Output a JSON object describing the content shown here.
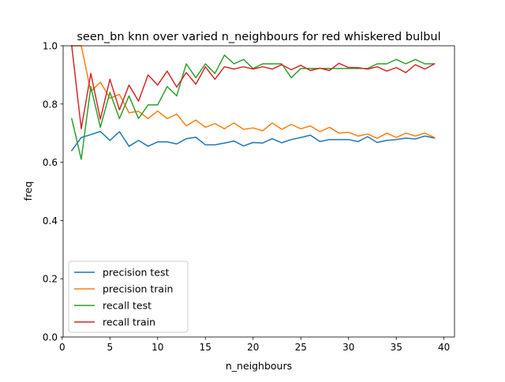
{
  "chart_data": {
    "type": "line",
    "title": "seen_bn knn over varied n_neighbours for red whiskered bulbul",
    "xlabel": "n_neighbours",
    "ylabel": "freq",
    "xlim": [
      0.1,
      41.1
    ],
    "ylim": [
      0.0,
      1.0
    ],
    "xticks": [
      0,
      5,
      10,
      15,
      20,
      25,
      30,
      35,
      40
    ],
    "yticks": [
      0.0,
      0.2,
      0.4,
      0.6,
      0.8,
      1.0
    ],
    "xtick_labels": [
      "0",
      "5",
      "10",
      "15",
      "20",
      "25",
      "30",
      "35",
      "40"
    ],
    "ytick_labels": [
      "0.0",
      "0.2",
      "0.4",
      "0.6",
      "0.8",
      "1.0"
    ],
    "grid": false,
    "legend_position": "lower-left",
    "x": [
      1,
      2,
      3,
      4,
      5,
      6,
      7,
      8,
      9,
      10,
      11,
      12,
      13,
      14,
      15,
      16,
      17,
      18,
      19,
      20,
      21,
      22,
      23,
      24,
      25,
      26,
      27,
      28,
      29,
      30,
      31,
      32,
      33,
      34,
      35,
      36,
      37,
      38,
      39
    ],
    "series": [
      {
        "name": "precision test",
        "color": "#1f77b4",
        "values": [
          0.64,
          0.685,
          0.695,
          0.706,
          0.675,
          0.705,
          0.655,
          0.675,
          0.655,
          0.67,
          0.67,
          0.663,
          0.681,
          0.686,
          0.66,
          0.66,
          0.666,
          0.673,
          0.656,
          0.668,
          0.666,
          0.681,
          0.667,
          0.678,
          0.685,
          0.693,
          0.671,
          0.678,
          0.678,
          0.678,
          0.671,
          0.688,
          0.668,
          0.675,
          0.678,
          0.683,
          0.68,
          0.69,
          0.683
        ]
      },
      {
        "name": "precision train",
        "color": "#ff7f0e",
        "values": [
          1.0,
          1.0,
          0.843,
          0.875,
          0.82,
          0.833,
          0.77,
          0.775,
          0.75,
          0.776,
          0.75,
          0.765,
          0.725,
          0.745,
          0.72,
          0.733,
          0.715,
          0.735,
          0.713,
          0.718,
          0.708,
          0.735,
          0.713,
          0.73,
          0.715,
          0.725,
          0.705,
          0.72,
          0.7,
          0.703,
          0.69,
          0.697,
          0.682,
          0.7,
          0.685,
          0.7,
          0.69,
          0.7,
          0.685
        ]
      },
      {
        "name": "recall test",
        "color": "#2ca02c",
        "values": [
          0.75,
          0.61,
          0.86,
          0.72,
          0.84,
          0.75,
          0.828,
          0.75,
          0.797,
          0.797,
          0.86,
          0.828,
          0.938,
          0.89,
          0.938,
          0.905,
          0.968,
          0.938,
          0.953,
          0.922,
          0.938,
          0.938,
          0.938,
          0.89,
          0.922,
          0.922,
          0.922,
          0.922,
          0.922,
          0.922,
          0.922,
          0.922,
          0.938,
          0.938,
          0.953,
          0.938,
          0.953,
          0.938,
          0.938
        ]
      },
      {
        "name": "recall train",
        "color": "#d62728",
        "values": [
          1.0,
          0.715,
          0.905,
          0.748,
          0.885,
          0.78,
          0.865,
          0.81,
          0.9,
          0.865,
          0.913,
          0.858,
          0.908,
          0.868,
          0.928,
          0.885,
          0.928,
          0.92,
          0.928,
          0.92,
          0.928,
          0.92,
          0.935,
          0.918,
          0.933,
          0.915,
          0.923,
          0.915,
          0.94,
          0.925,
          0.925,
          0.92,
          0.928,
          0.913,
          0.925,
          0.908,
          0.935,
          0.92,
          0.938
        ]
      }
    ]
  }
}
